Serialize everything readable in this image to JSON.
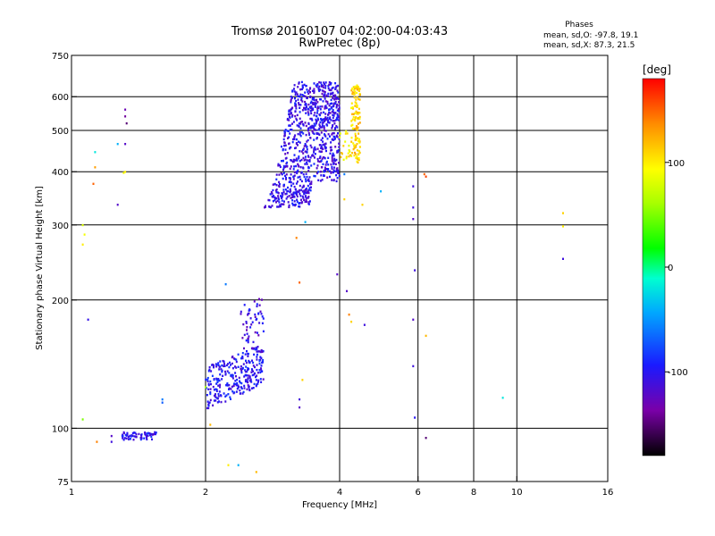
{
  "chart_data": {
    "type": "scatter",
    "title": "Tromsø 20160107 04:02:00-04:03:43",
    "subtitle": "RwPretec (8p)",
    "phases_block": {
      "heading": "Phases",
      "line1": "mean, sd,O: -97.8, 19.1",
      "line2": "mean, sd,X:  87.3, 21.5"
    },
    "xlabel": "Frequency [MHz]",
    "ylabel": "Stationary phase Virtual Height [km]",
    "x_scale": "log2",
    "y_scale": "log",
    "xlim": [
      1,
      16
    ],
    "ylim": [
      75,
      750
    ],
    "x_ticks": [
      1,
      2,
      4,
      6,
      8,
      10,
      16
    ],
    "x_tick_labels": [
      "1",
      "2",
      "4",
      "6",
      "8",
      "10",
      "16"
    ],
    "y_ticks": [
      75,
      100,
      200,
      300,
      400,
      500,
      600,
      750
    ],
    "y_tick_labels": [
      "75",
      "100",
      "200",
      "300",
      "400",
      "500",
      "600",
      "750"
    ],
    "x_gridlines": [
      2,
      4,
      6,
      8,
      10
    ],
    "y_gridlines": [
      100,
      200,
      300,
      400,
      500,
      600
    ],
    "colorbar": {
      "label": "[deg]",
      "range": [
        -180,
        180
      ],
      "ticks": [
        100,
        0,
        -100
      ],
      "tick_labels": [
        "100",
        "0",
        "-100"
      ]
    },
    "clusters": [
      {
        "f_range": [
          2.7,
          4.0
        ],
        "h_range": [
          330,
          650
        ],
        "phase": -105,
        "n": 900,
        "shape": "F-trace"
      },
      {
        "f_range": [
          4.25,
          4.45
        ],
        "h_range": [
          420,
          640
        ],
        "phase": 110,
        "n": 120,
        "shape": "box"
      },
      {
        "f_range": [
          4.0,
          4.25
        ],
        "h_range": [
          420,
          500
        ],
        "phase": 100,
        "n": 20,
        "shape": "box"
      },
      {
        "f_range": [
          2.0,
          2.7
        ],
        "h_range": [
          110,
          160
        ],
        "phase": -100,
        "n": 280,
        "shape": "E-trace"
      },
      {
        "f_range": [
          2.4,
          2.7
        ],
        "h_range": [
          150,
          205
        ],
        "phase": -110,
        "n": 60,
        "shape": "box"
      },
      {
        "f_range": [
          1.3,
          1.55
        ],
        "h_range": [
          94,
          98
        ],
        "phase": -100,
        "n": 60,
        "shape": "box"
      }
    ],
    "points": [
      {
        "f": 1.06,
        "h": 300,
        "phase": 80
      },
      {
        "f": 1.07,
        "h": 285,
        "phase": 90
      },
      {
        "f": 1.06,
        "h": 270,
        "phase": 100
      },
      {
        "f": 1.06,
        "h": 105,
        "phase": 50
      },
      {
        "f": 1.09,
        "h": 180,
        "phase": -105
      },
      {
        "f": 1.13,
        "h": 445,
        "phase": -20
      },
      {
        "f": 1.13,
        "h": 410,
        "phase": 130
      },
      {
        "f": 1.12,
        "h": 375,
        "phase": 150
      },
      {
        "f": 1.14,
        "h": 93,
        "phase": 140
      },
      {
        "f": 1.23,
        "h": 96,
        "phase": -120
      },
      {
        "f": 1.23,
        "h": 93,
        "phase": -110
      },
      {
        "f": 1.27,
        "h": 465,
        "phase": -40
      },
      {
        "f": 1.27,
        "h": 335,
        "phase": -120
      },
      {
        "f": 1.32,
        "h": 560,
        "phase": -130
      },
      {
        "f": 1.32,
        "h": 540,
        "phase": -140
      },
      {
        "f": 1.33,
        "h": 520,
        "phase": -150
      },
      {
        "f": 1.32,
        "h": 465,
        "phase": -120
      },
      {
        "f": 1.32,
        "h": 400,
        "phase": 100
      },
      {
        "f": 1.31,
        "h": 398,
        "phase": 90
      },
      {
        "f": 1.6,
        "h": 117,
        "phase": -60
      },
      {
        "f": 1.6,
        "h": 115,
        "phase": -70
      },
      {
        "f": 2.0,
        "h": 125,
        "phase": 60
      },
      {
        "f": 2.05,
        "h": 102,
        "phase": 120
      },
      {
        "f": 2.25,
        "h": 82,
        "phase": 100
      },
      {
        "f": 2.37,
        "h": 82,
        "phase": -40
      },
      {
        "f": 2.6,
        "h": 79,
        "phase": 120
      },
      {
        "f": 2.22,
        "h": 218,
        "phase": -60
      },
      {
        "f": 3.25,
        "h": 117,
        "phase": -110
      },
      {
        "f": 3.25,
        "h": 112,
        "phase": -120
      },
      {
        "f": 3.25,
        "h": 220,
        "phase": 150
      },
      {
        "f": 3.3,
        "h": 130,
        "phase": 110
      },
      {
        "f": 3.35,
        "h": 305,
        "phase": -40
      },
      {
        "f": 3.2,
        "h": 280,
        "phase": 140
      },
      {
        "f": 3.95,
        "h": 230,
        "phase": -120
      },
      {
        "f": 4.1,
        "h": 395,
        "phase": -60
      },
      {
        "f": 4.1,
        "h": 345,
        "phase": 110
      },
      {
        "f": 4.15,
        "h": 210,
        "phase": -120
      },
      {
        "f": 4.2,
        "h": 185,
        "phase": 140
      },
      {
        "f": 4.25,
        "h": 178,
        "phase": 110
      },
      {
        "f": 4.5,
        "h": 335,
        "phase": 110
      },
      {
        "f": 4.55,
        "h": 175,
        "phase": -110
      },
      {
        "f": 4.95,
        "h": 360,
        "phase": -40
      },
      {
        "f": 5.85,
        "h": 370,
        "phase": -110
      },
      {
        "f": 5.85,
        "h": 330,
        "phase": -110
      },
      {
        "f": 5.85,
        "h": 310,
        "phase": -120
      },
      {
        "f": 5.9,
        "h": 235,
        "phase": -110
      },
      {
        "f": 5.85,
        "h": 180,
        "phase": -120
      },
      {
        "f": 5.85,
        "h": 140,
        "phase": -110
      },
      {
        "f": 5.9,
        "h": 106,
        "phase": -100
      },
      {
        "f": 6.25,
        "h": 95,
        "phase": -150
      },
      {
        "f": 6.25,
        "h": 165,
        "phase": 120
      },
      {
        "f": 6.2,
        "h": 395,
        "phase": 150
      },
      {
        "f": 6.25,
        "h": 390,
        "phase": 160
      },
      {
        "f": 9.3,
        "h": 118,
        "phase": -20
      },
      {
        "f": 12.7,
        "h": 320,
        "phase": 110
      },
      {
        "f": 12.7,
        "h": 298,
        "phase": 100
      },
      {
        "f": 12.7,
        "h": 250,
        "phase": -110
      }
    ],
    "grid": true,
    "legend": "none"
  }
}
